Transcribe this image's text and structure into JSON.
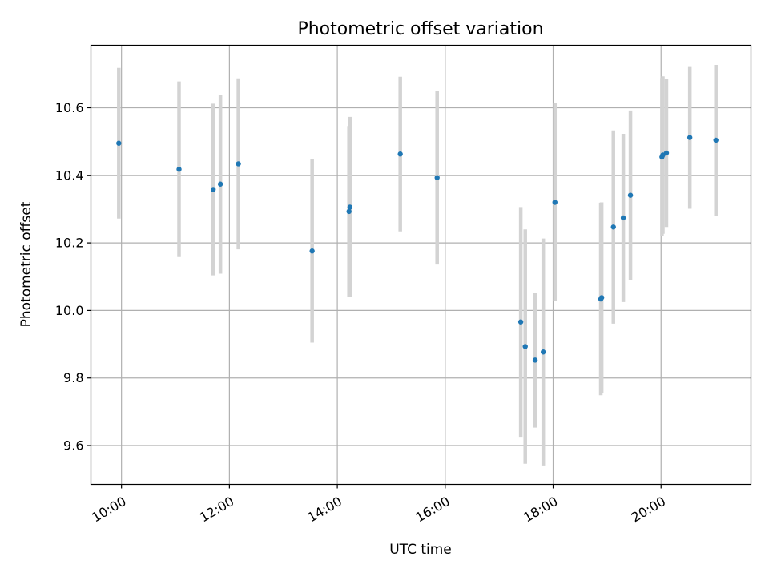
{
  "chart_data": {
    "type": "scatter",
    "title": "Photometric offset variation",
    "xlabel": "UTC time",
    "ylabel": "Photometric offset",
    "xlim": [
      "09:26",
      "21:40"
    ],
    "ylim": [
      9.485,
      10.785
    ],
    "x_ticks": [
      "10:00",
      "12:00",
      "14:00",
      "16:00",
      "18:00",
      "20:00"
    ],
    "y_ticks": [
      "9.6",
      "9.8",
      "10.0",
      "10.2",
      "10.4",
      "10.6"
    ],
    "grid": true,
    "marker_color": "#1f77b4",
    "errorbar_color": "#d3d3d3",
    "grid_color": "#b0b0b0",
    "points": [
      {
        "x": "09:57",
        "y": 10.495,
        "ylow": 10.272,
        "yhigh": 10.718
      },
      {
        "x": "11:04",
        "y": 10.418,
        "ylow": 10.158,
        "yhigh": 10.678
      },
      {
        "x": "11:42",
        "y": 10.358,
        "ylow": 10.104,
        "yhigh": 10.612
      },
      {
        "x": "11:50",
        "y": 10.374,
        "ylow": 10.109,
        "yhigh": 10.637
      },
      {
        "x": "12:10",
        "y": 10.434,
        "ylow": 10.181,
        "yhigh": 10.687
      },
      {
        "x": "13:32",
        "y": 10.176,
        "ylow": 9.905,
        "yhigh": 10.447
      },
      {
        "x": "14:13",
        "y": 10.293,
        "ylow": 10.04,
        "yhigh": 10.546
      },
      {
        "x": "14:14",
        "y": 10.306,
        "ylow": 10.039,
        "yhigh": 10.573
      },
      {
        "x": "15:10",
        "y": 10.463,
        "ylow": 10.234,
        "yhigh": 10.692
      },
      {
        "x": "15:51",
        "y": 10.393,
        "ylow": 10.136,
        "yhigh": 10.65
      },
      {
        "x": "17:24",
        "y": 9.966,
        "ylow": 9.626,
        "yhigh": 10.306
      },
      {
        "x": "17:29",
        "y": 9.893,
        "ylow": 9.546,
        "yhigh": 10.24
      },
      {
        "x": "17:40",
        "y": 9.853,
        "ylow": 9.653,
        "yhigh": 10.053
      },
      {
        "x": "17:49",
        "y": 9.877,
        "ylow": 9.541,
        "yhigh": 10.213
      },
      {
        "x": "18:02",
        "y": 10.32,
        "ylow": 10.027,
        "yhigh": 10.613
      },
      {
        "x": "18:53",
        "y": 10.034,
        "ylow": 9.749,
        "yhigh": 10.319
      },
      {
        "x": "18:54",
        "y": 10.038,
        "ylow": 9.756,
        "yhigh": 10.32
      },
      {
        "x": "19:07",
        "y": 10.247,
        "ylow": 9.961,
        "yhigh": 10.533
      },
      {
        "x": "19:18",
        "y": 10.274,
        "ylow": 10.025,
        "yhigh": 10.523
      },
      {
        "x": "19:26",
        "y": 10.341,
        "ylow": 10.09,
        "yhigh": 10.592
      },
      {
        "x": "20:01",
        "y": 10.454,
        "ylow": 10.22,
        "yhigh": 10.688
      },
      {
        "x": "20:02",
        "y": 10.46,
        "ylow": 10.227,
        "yhigh": 10.693
      },
      {
        "x": "20:06",
        "y": 10.466,
        "ylow": 10.247,
        "yhigh": 10.685
      },
      {
        "x": "20:32",
        "y": 10.512,
        "ylow": 10.301,
        "yhigh": 10.723
      },
      {
        "x": "21:01",
        "y": 10.504,
        "ylow": 10.281,
        "yhigh": 10.727
      }
    ]
  }
}
